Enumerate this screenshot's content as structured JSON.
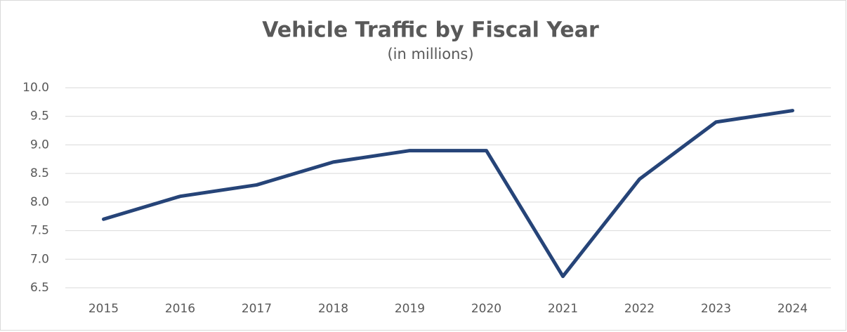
{
  "chart_data": {
    "type": "line",
    "title": "Vehicle Traffic by Fiscal Year",
    "subtitle": "(in millions)",
    "categories": [
      "2015",
      "2016",
      "2017",
      "2018",
      "2019",
      "2020",
      "2021",
      "2022",
      "2023",
      "2024"
    ],
    "series": [
      {
        "name": "Vehicle Traffic",
        "color": "#264478",
        "values": [
          7.7,
          8.1,
          8.3,
          8.7,
          8.9,
          8.9,
          6.7,
          8.4,
          9.4,
          9.6
        ]
      }
    ],
    "ylim": [
      6.5,
      10
    ],
    "yticks": [
      6.5,
      {
        "value": 7,
        "label": "7.0"
      },
      7.5,
      {
        "value": 8,
        "label": "8.0"
      },
      8.5,
      {
        "value": 9,
        "label": "9.0"
      },
      9.5,
      {
        "value": 10,
        "label": "10.0"
      }
    ],
    "grid": true
  }
}
